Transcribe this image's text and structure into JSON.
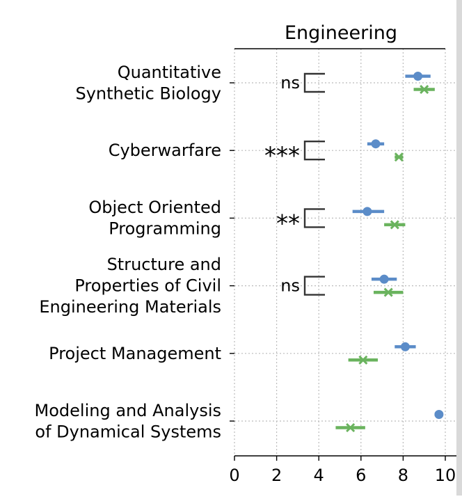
{
  "chart_data": {
    "type": "scatter",
    "title": "Engineering",
    "xlabel": "",
    "ylabel": "",
    "xlim": [
      0,
      10
    ],
    "xticks": [
      0,
      2,
      4,
      6,
      8,
      10
    ],
    "xtick_labels": [
      "0",
      "2",
      "4",
      "6",
      "8",
      "10"
    ],
    "grid": true,
    "categories": [
      [
        "Quantitative",
        "Synthetic Biology"
      ],
      [
        "Cyberwarfare"
      ],
      [
        "Object Oriented",
        "Programming"
      ],
      [
        "Structure and",
        "Properties of Civil",
        "Engineering Materials"
      ],
      [
        "Project Management"
      ],
      [
        "Modeling and Analysis",
        "of Dynamical Systems"
      ]
    ],
    "series": [
      {
        "marker": "circle",
        "color": "#5b8cc8",
        "values": [
          8.7,
          6.7,
          6.3,
          7.1,
          8.1,
          9.7
        ],
        "err_low": [
          8.1,
          6.3,
          5.6,
          6.5,
          7.6,
          9.5
        ],
        "err_high": [
          9.3,
          7.1,
          7.1,
          7.7,
          8.6,
          9.9
        ]
      },
      {
        "marker": "x",
        "color": "#6ab35e",
        "values": [
          9.0,
          7.8,
          7.6,
          7.3,
          6.1,
          5.5
        ],
        "err_low": [
          8.5,
          7.6,
          7.1,
          6.6,
          5.4,
          4.8
        ],
        "err_high": [
          9.5,
          8.0,
          8.1,
          8.0,
          6.8,
          6.2
        ]
      }
    ],
    "significance": [
      "ns",
      "***",
      "**",
      "ns",
      "",
      ""
    ]
  }
}
